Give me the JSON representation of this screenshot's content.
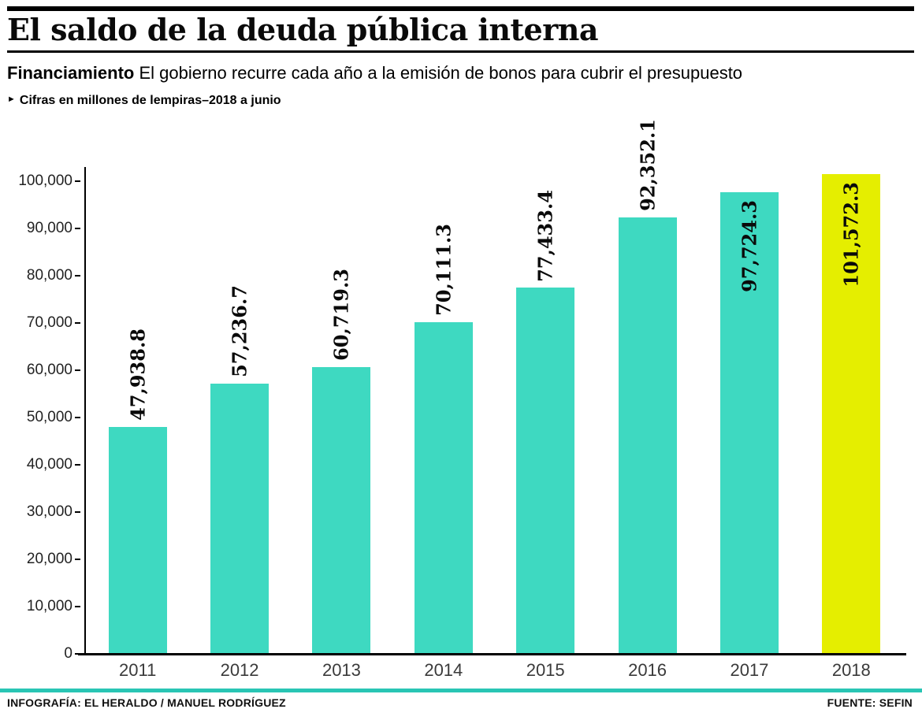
{
  "header": {
    "title": "El saldo de la deuda pública interna",
    "kicker_bold": "Financiamiento",
    "kicker_rest": " El gobierno recurre cada año a la emisión de bonos para cubrir el presupuesto",
    "note_arrow": "►",
    "note": "Cifras en millones de lempiras–2018 a junio"
  },
  "footer": {
    "credit": "INFOGRAFÍA: EL HERALDO / MANUEL RODRÍGUEZ",
    "source": "FUENTE: SEFIN"
  },
  "colors": {
    "bar": "#3ed9c1",
    "highlight_bar": "#e5ee00",
    "footer_rule": "#29c5b4",
    "axis": "#000000"
  },
  "chart_data": {
    "type": "bar",
    "title": "El saldo de la deuda pública interna",
    "subtitle": "Financiamiento: El gobierno recurre cada año a la emisión de bonos para cubrir el presupuesto",
    "units_note": "Cifras en millones de lempiras–2018 a junio",
    "categories": [
      "2011",
      "2012",
      "2013",
      "2014",
      "2015",
      "2016",
      "2017",
      "2018"
    ],
    "values": [
      47938.8,
      57236.7,
      60719.3,
      70111.3,
      77433.4,
      92352.1,
      97724.3,
      101572.3
    ],
    "value_labels": [
      "47,938.8",
      "57,236.7",
      "60,719.3",
      "70,111.3",
      "77,433.4",
      "92,352.1",
      "97,724.3",
      "101,572.3"
    ],
    "label_inside": [
      false,
      false,
      false,
      false,
      false,
      false,
      true,
      true
    ],
    "highlight_index": 7,
    "xlabel": "",
    "ylabel": "",
    "ylim": [
      0,
      100000
    ],
    "ytick_step": 10000,
    "ytick_labels": [
      "0",
      "10,000",
      "20,000",
      "30,000",
      "40,000",
      "50,000",
      "60,000",
      "70,000",
      "80,000",
      "90,000",
      "100,000"
    ],
    "grid": false,
    "legend": "none"
  }
}
